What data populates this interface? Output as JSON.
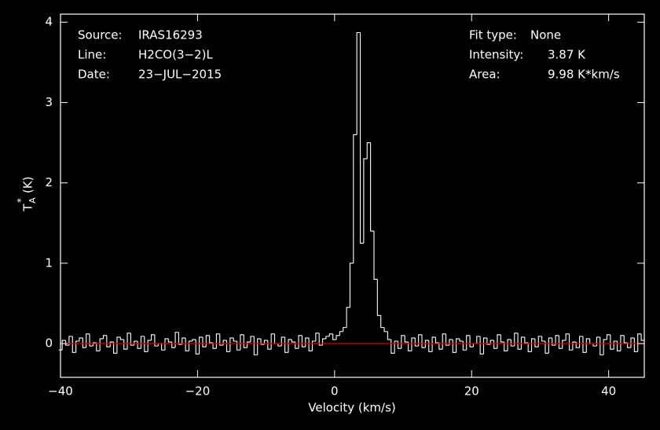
{
  "chart_data": {
    "type": "step",
    "x_label": "Velocity (km/s)",
    "y_label": {
      "symbol": "T",
      "superscript": "*",
      "subscript": "A",
      "unit": "(K)"
    },
    "annotations_left": [
      {
        "label": "Source:",
        "value": "IRAS16293"
      },
      {
        "label": "Line:",
        "value": "H2CO(3−2)L"
      },
      {
        "label": "Date:",
        "value": "23−JUL−2015"
      }
    ],
    "annotations_right": [
      {
        "label": "Fit type:",
        "value": "None"
      },
      {
        "label": "Intensity:",
        "value": "3.87 K"
      },
      {
        "label": "Area:",
        "value": "9.98 K*km/s"
      }
    ],
    "xlim": [
      -40,
      45.2
    ],
    "ylim": [
      -0.42,
      4.1
    ],
    "xticks": [
      {
        "value": -40,
        "label": "−40"
      },
      {
        "value": -20,
        "label": "−20"
      },
      0,
      20,
      40
    ],
    "yticks": [
      0,
      1,
      2,
      3,
      4
    ],
    "color": "#ffffff",
    "baseline": 0,
    "baseline_color": "#cc0000",
    "x": [
      -40,
      -39.5,
      -39,
      -38.5,
      -38,
      -37.5,
      -37,
      -36.5,
      -36,
      -35.5,
      -35,
      -34.5,
      -34,
      -33.5,
      -33,
      -32.5,
      -32,
      -31.5,
      -31,
      -30.5,
      -30,
      -29.5,
      -29,
      -28.5,
      -28,
      -27.5,
      -27,
      -26.5,
      -26,
      -25.5,
      -25,
      -24.5,
      -24,
      -23.5,
      -23,
      -22.5,
      -22,
      -21.5,
      -21,
      -20.5,
      -20,
      -19.5,
      -19,
      -18.5,
      -18,
      -17.5,
      -17,
      -16.5,
      -16,
      -15.5,
      -15,
      -14.5,
      -14,
      -13.5,
      -13,
      -12.5,
      -12,
      -11.5,
      -11,
      -10.5,
      -10,
      -9.5,
      -9,
      -8.5,
      -8,
      -7.5,
      -7,
      -6.5,
      -6,
      -5.5,
      -5,
      -4.5,
      -4,
      -3.5,
      -3,
      -2.5,
      -2,
      -1.5,
      -1,
      -0.5,
      0,
      0.5,
      1,
      1.5,
      2,
      2.5,
      3,
      3.5,
      4,
      4.5,
      5,
      5.5,
      6,
      6.5,
      7,
      7.5,
      8,
      8.5,
      9,
      9.5,
      10,
      10.5,
      11,
      11.5,
      12,
      12.5,
      13,
      13.5,
      14,
      14.5,
      15,
      15.5,
      16,
      16.5,
      17,
      17.5,
      18,
      18.5,
      19,
      19.5,
      20,
      20.5,
      21,
      21.5,
      22,
      22.5,
      23,
      23.5,
      24,
      24.5,
      25,
      25.5,
      26,
      26.5,
      27,
      27.5,
      28,
      28.5,
      29,
      29.5,
      30,
      30.5,
      31,
      31.5,
      32,
      32.5,
      33,
      33.5,
      34,
      34.5,
      35,
      35.5,
      36,
      36.5,
      37,
      37.5,
      38,
      38.5,
      39,
      39.5,
      40,
      40.5,
      41,
      41.5,
      42,
      42.5,
      43,
      43.5,
      44,
      44.5,
      45
    ],
    "values": [
      -0.08,
      0.04,
      -0.02,
      0.09,
      -0.11,
      0.03,
      0.07,
      -0.05,
      0.12,
      -0.03,
      0.01,
      -0.09,
      0.06,
      0.1,
      -0.04,
      0.02,
      -0.12,
      0.08,
      0.05,
      -0.07,
      0.13,
      -0.02,
      0.03,
      -0.06,
      0.09,
      -0.1,
      0.04,
      0.11,
      -0.03,
      0.0,
      -0.08,
      0.06,
      0.02,
      -0.05,
      0.14,
      -0.01,
      0.07,
      -0.09,
      0.03,
      0.05,
      -0.13,
      0.08,
      -0.04,
      0.1,
      0.01,
      -0.06,
      0.12,
      -0.02,
      0.04,
      -0.1,
      0.07,
      0.03,
      -0.08,
      0.11,
      -0.05,
      0.02,
      0.09,
      -0.14,
      0.06,
      -0.01,
      0.04,
      -0.07,
      0.12,
      0.0,
      -0.03,
      0.08,
      -0.11,
      0.05,
      0.02,
      -0.06,
      0.1,
      -0.04,
      0.07,
      -0.09,
      0.03,
      0.13,
      -0.02,
      0.06,
      0.09,
      0.12,
      0.05,
      0.1,
      0.15,
      0.2,
      0.45,
      1.0,
      2.6,
      3.87,
      1.25,
      2.3,
      2.5,
      1.4,
      0.8,
      0.35,
      0.2,
      0.15,
      0.05,
      -0.12,
      0.03,
      -0.06,
      0.1,
      0.02,
      -0.09,
      0.07,
      -0.03,
      0.11,
      -0.05,
      0.04,
      -0.1,
      0.08,
      0.01,
      -0.07,
      0.12,
      -0.02,
      0.05,
      -0.11,
      0.06,
      0.03,
      -0.08,
      0.1,
      -0.04,
      0.0,
      0.09,
      -0.13,
      0.07,
      -0.01,
      0.04,
      -0.06,
      0.11,
      0.02,
      -0.09,
      0.05,
      -0.03,
      0.13,
      -0.07,
      0.08,
      0.01,
      -0.1,
      0.06,
      -0.04,
      0.09,
      0.03,
      -0.12,
      0.07,
      -0.02,
      0.1,
      -0.06,
      0.04,
      0.12,
      -0.08,
      0.02,
      -0.05,
      0.09,
      -0.11,
      0.06,
      0.0,
      -0.03,
      0.08,
      -0.14,
      0.05,
      0.11,
      -0.07,
      0.03,
      -0.09,
      0.1,
      0.01,
      -0.05,
      0.07,
      -0.1,
      0.12,
      0.04
    ]
  }
}
